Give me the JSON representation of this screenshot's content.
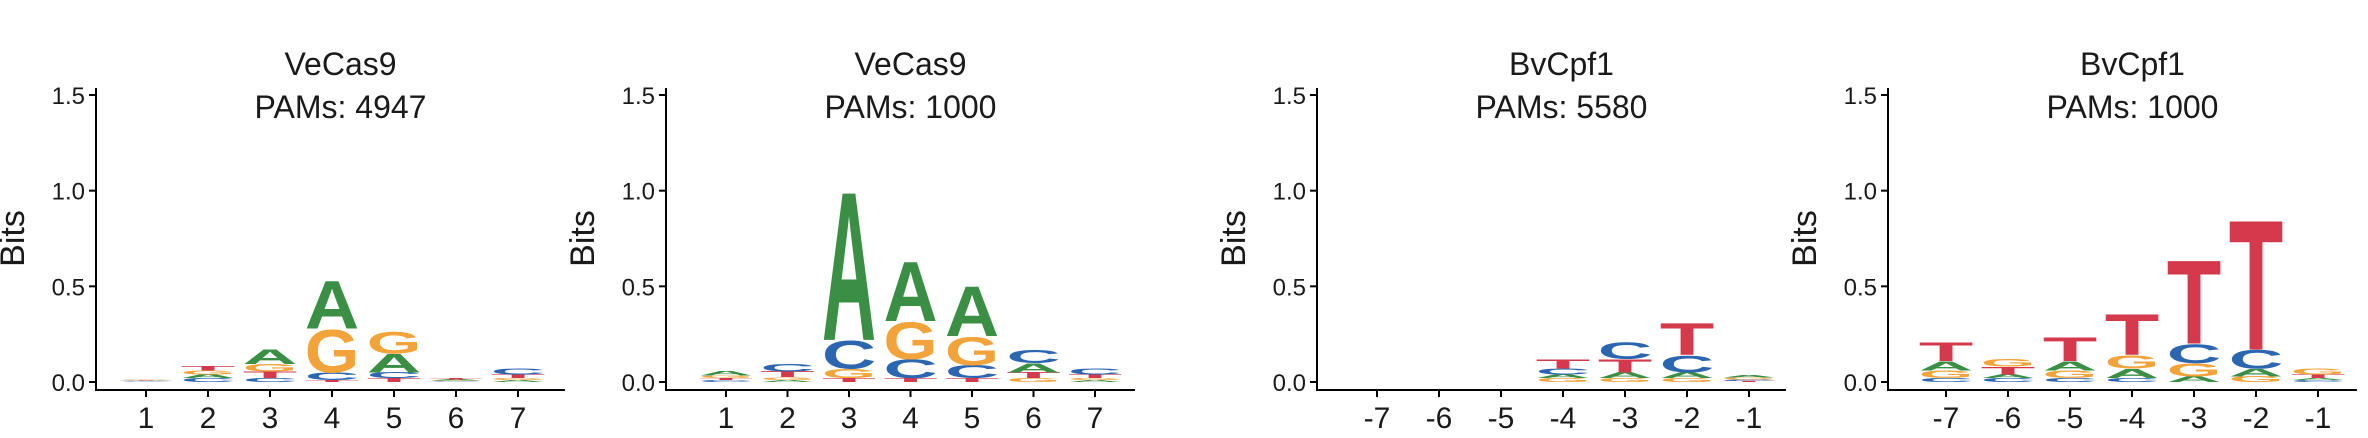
{
  "colors": {
    "A": "#3a8f45",
    "C": "#2c66b0",
    "G": "#f2a33a",
    "T": "#d43a4b",
    "axis": "#000000",
    "text": "#1a1a1a"
  },
  "chart_data": [
    {
      "type": "sequence-logo",
      "title": "VeCas9",
      "subtitle": "PAMs: 4947",
      "ylabel": "Bits",
      "ylim": [
        0,
        1.5
      ],
      "yticks": [
        "0.0",
        "0.5",
        "1.0",
        "1.5"
      ],
      "xticks": [
        "1",
        "2",
        "3",
        "4",
        "5",
        "6",
        "7"
      ],
      "positions": [
        {
          "x": "1",
          "letters": [
            {
              "base": "C",
              "bits": 0.004
            },
            {
              "base": "A",
              "bits": 0.004
            },
            {
              "base": "T",
              "bits": 0.004
            },
            {
              "base": "G",
              "bits": 0.004
            }
          ]
        },
        {
          "x": "2",
          "letters": [
            {
              "base": "C",
              "bits": 0.02
            },
            {
              "base": "A",
              "bits": 0.02
            },
            {
              "base": "G",
              "bits": 0.02
            },
            {
              "base": "T",
              "bits": 0.025
            }
          ]
        },
        {
          "x": "3",
          "letters": [
            {
              "base": "C",
              "bits": 0.02
            },
            {
              "base": "T",
              "bits": 0.035
            },
            {
              "base": "G",
              "bits": 0.04
            },
            {
              "base": "A",
              "bits": 0.08
            }
          ]
        },
        {
          "x": "4",
          "letters": [
            {
              "base": "T",
              "bits": 0.01
            },
            {
              "base": "C",
              "bits": 0.04
            },
            {
              "base": "G",
              "bits": 0.23
            },
            {
              "base": "A",
              "bits": 0.26
            }
          ]
        },
        {
          "x": "5",
          "letters": [
            {
              "base": "T",
              "bits": 0.02
            },
            {
              "base": "C",
              "bits": 0.03
            },
            {
              "base": "A",
              "bits": 0.1
            },
            {
              "base": "G",
              "bits": 0.12
            }
          ]
        },
        {
          "x": "6",
          "letters": [
            {
              "base": "C",
              "bits": 0.004
            },
            {
              "base": "G",
              "bits": 0.004
            },
            {
              "base": "A",
              "bits": 0.005
            },
            {
              "base": "T",
              "bits": 0.005
            }
          ]
        },
        {
          "x": "7",
          "letters": [
            {
              "base": "A",
              "bits": 0.01
            },
            {
              "base": "G",
              "bits": 0.01
            },
            {
              "base": "T",
              "bits": 0.02
            },
            {
              "base": "C",
              "bits": 0.03
            }
          ]
        }
      ]
    },
    {
      "type": "sequence-logo",
      "title": "VeCas9",
      "subtitle": "PAMs: 1000",
      "ylabel": "Bits",
      "ylim": [
        0,
        1.5
      ],
      "yticks": [
        "0.0",
        "0.5",
        "1.0",
        "1.5"
      ],
      "xticks": [
        "1",
        "2",
        "3",
        "4",
        "5",
        "6",
        "7"
      ],
      "positions": [
        {
          "x": "1",
          "letters": [
            {
              "base": "C",
              "bits": 0.01
            },
            {
              "base": "T",
              "bits": 0.01
            },
            {
              "base": "G",
              "bits": 0.015
            },
            {
              "base": "A",
              "bits": 0.025
            }
          ]
        },
        {
          "x": "2",
          "letters": [
            {
              "base": "A",
              "bits": 0.01
            },
            {
              "base": "G",
              "bits": 0.015
            },
            {
              "base": "T",
              "bits": 0.03
            },
            {
              "base": "C",
              "bits": 0.04
            }
          ]
        },
        {
          "x": "3",
          "letters": [
            {
              "base": "T",
              "bits": 0.02
            },
            {
              "base": "G",
              "bits": 0.05
            },
            {
              "base": "C",
              "bits": 0.15
            },
            {
              "base": "A",
              "bits": 0.8
            }
          ]
        },
        {
          "x": "4",
          "letters": [
            {
              "base": "T",
              "bits": 0.02
            },
            {
              "base": "C",
              "bits": 0.1
            },
            {
              "base": "G",
              "bits": 0.2
            },
            {
              "base": "A",
              "bits": 0.32
            }
          ]
        },
        {
          "x": "5",
          "letters": [
            {
              "base": "T",
              "bits": 0.02
            },
            {
              "base": "C",
              "bits": 0.07
            },
            {
              "base": "G",
              "bits": 0.15
            },
            {
              "base": "A",
              "bits": 0.27
            }
          ]
        },
        {
          "x": "6",
          "letters": [
            {
              "base": "G",
              "bits": 0.02
            },
            {
              "base": "T",
              "bits": 0.03
            },
            {
              "base": "A",
              "bits": 0.05
            },
            {
              "base": "C",
              "bits": 0.07
            }
          ]
        },
        {
          "x": "7",
          "letters": [
            {
              "base": "A",
              "bits": 0.01
            },
            {
              "base": "G",
              "bits": 0.01
            },
            {
              "base": "T",
              "bits": 0.02
            },
            {
              "base": "C",
              "bits": 0.03
            }
          ]
        }
      ]
    },
    {
      "type": "sequence-logo",
      "title": "BvCpf1",
      "subtitle": "PAMs: 5580",
      "ylabel": "Bits",
      "ylim": [
        0,
        1.5
      ],
      "yticks": [
        "0.0",
        "0.5",
        "1.0",
        "1.5"
      ],
      "xticks": [
        "-7",
        "-6",
        "-5",
        "-4",
        "-3",
        "-2",
        "-1"
      ],
      "positions": [
        {
          "x": "-7",
          "letters": []
        },
        {
          "x": "-6",
          "letters": []
        },
        {
          "x": "-5",
          "letters": []
        },
        {
          "x": "-4",
          "letters": [
            {
              "base": "G",
              "bits": 0.02
            },
            {
              "base": "A",
              "bits": 0.02
            },
            {
              "base": "C",
              "bits": 0.03
            },
            {
              "base": "T",
              "bits": 0.05
            }
          ]
        },
        {
          "x": "-3",
          "letters": [
            {
              "base": "G",
              "bits": 0.02
            },
            {
              "base": "A",
              "bits": 0.03
            },
            {
              "base": "T",
              "bits": 0.07
            },
            {
              "base": "C",
              "bits": 0.09
            }
          ]
        },
        {
          "x": "-2",
          "letters": [
            {
              "base": "G",
              "bits": 0.02
            },
            {
              "base": "A",
              "bits": 0.03
            },
            {
              "base": "C",
              "bits": 0.09
            },
            {
              "base": "T",
              "bits": 0.17
            }
          ]
        },
        {
          "x": "-1",
          "letters": [
            {
              "base": "T",
              "bits": 0.005
            },
            {
              "base": "C",
              "bits": 0.008
            },
            {
              "base": "G",
              "bits": 0.01
            },
            {
              "base": "A",
              "bits": 0.015
            }
          ]
        }
      ]
    },
    {
      "type": "sequence-logo",
      "title": "BvCpf1",
      "subtitle": "PAMs: 1000",
      "ylabel": "Bits",
      "ylim": [
        0,
        1.5
      ],
      "yticks": [
        "0.0",
        "0.5",
        "1.0",
        "1.5"
      ],
      "xticks": [
        "-7",
        "-6",
        "-5",
        "-4",
        "-3",
        "-2",
        "-1"
      ],
      "positions": [
        {
          "x": "-7",
          "letters": [
            {
              "base": "C",
              "bits": 0.02
            },
            {
              "base": "G",
              "bits": 0.04
            },
            {
              "base": "A",
              "bits": 0.05
            },
            {
              "base": "T",
              "bits": 0.1
            }
          ]
        },
        {
          "x": "-6",
          "letters": [
            {
              "base": "C",
              "bits": 0.02
            },
            {
              "base": "A",
              "bits": 0.02
            },
            {
              "base": "T",
              "bits": 0.04
            },
            {
              "base": "G",
              "bits": 0.04
            }
          ]
        },
        {
          "x": "-5",
          "letters": [
            {
              "base": "C",
              "bits": 0.02
            },
            {
              "base": "G",
              "bits": 0.04
            },
            {
              "base": "A",
              "bits": 0.05
            },
            {
              "base": "T",
              "bits": 0.13
            }
          ]
        },
        {
          "x": "-4",
          "letters": [
            {
              "base": "C",
              "bits": 0.02
            },
            {
              "base": "A",
              "bits": 0.05
            },
            {
              "base": "G",
              "bits": 0.07
            },
            {
              "base": "T",
              "bits": 0.22
            }
          ]
        },
        {
          "x": "-3",
          "letters": [
            {
              "base": "A",
              "bits": 0.03
            },
            {
              "base": "G",
              "bits": 0.07
            },
            {
              "base": "C",
              "bits": 0.1
            },
            {
              "base": "T",
              "bits": 0.45
            }
          ]
        },
        {
          "x": "-2",
          "letters": [
            {
              "base": "G",
              "bits": 0.03
            },
            {
              "base": "A",
              "bits": 0.04
            },
            {
              "base": "C",
              "bits": 0.1
            },
            {
              "base": "T",
              "bits": 0.7
            }
          ]
        },
        {
          "x": "-1",
          "letters": [
            {
              "base": "C",
              "bits": 0.01
            },
            {
              "base": "A",
              "bits": 0.01
            },
            {
              "base": "T",
              "bits": 0.02
            },
            {
              "base": "G",
              "bits": 0.03
            }
          ]
        }
      ]
    }
  ]
}
